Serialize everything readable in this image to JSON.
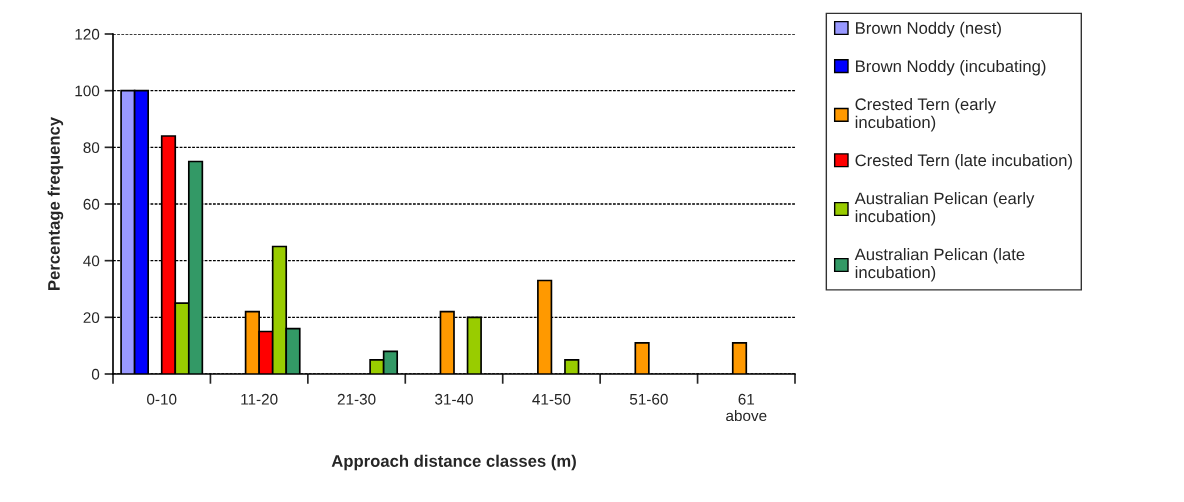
{
  "chart_data": {
    "type": "bar",
    "xlabel": "Approach distance classes (m)",
    "ylabel": "Percentage frequency",
    "categories": [
      "0-10",
      "11-20",
      "21-30",
      "31-40",
      "41-50",
      "51-60",
      "61 above"
    ],
    "series": [
      {
        "name": "Brown Noddy (nest)",
        "color": "#9999ff",
        "values": [
          100,
          null,
          null,
          null,
          null,
          null,
          null
        ]
      },
      {
        "name": "Brown Noddy (incubating)",
        "color": "#0000ff",
        "values": [
          100,
          null,
          null,
          null,
          null,
          null,
          null
        ]
      },
      {
        "name": "Crested Tern (early incubation)",
        "color": "#ff9900",
        "values": [
          null,
          22,
          null,
          22,
          33,
          11,
          11
        ]
      },
      {
        "name": "Crested Tern (late incubation)",
        "color": "#ff0000",
        "values": [
          84,
          15,
          null,
          null,
          null,
          null,
          null
        ]
      },
      {
        "name": "Australian Pelican (early incubation)",
        "color": "#99cc00",
        "values": [
          25,
          45,
          5,
          20,
          5,
          null,
          null
        ]
      },
      {
        "name": "Australian Pelican (late incubation)",
        "color": "#339966",
        "values": [
          75,
          16,
          8,
          null,
          null,
          null,
          null
        ]
      }
    ],
    "ylim": [
      0,
      120
    ],
    "yticks": [
      0,
      20,
      40,
      60,
      80,
      100,
      120
    ],
    "grid": "y",
    "legend": "right"
  }
}
